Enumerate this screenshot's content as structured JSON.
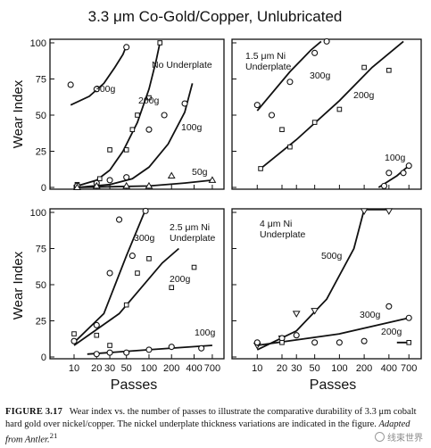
{
  "figure_title": "3.3 μm Co-Gold/Copper, Unlubricated",
  "y_axis_label": "Wear Index",
  "x_axis_label": "Passes",
  "x_tick_labels": [
    "10",
    "20",
    "30",
    "50",
    "100",
    "200",
    "400",
    "700"
  ],
  "caption": {
    "label": "FIGURE 3.17",
    "text": "Wear index vs. the number of passes to illustrate the comparative durability of 3.3 μm cobalt hard gold over nickel/copper. The nickel underplate thickness variations are indicated in the figure.",
    "adapted": "Adapted from Antler.",
    "ref": "21"
  },
  "watermark": "线束世界",
  "chart_data": [
    {
      "type": "scatter",
      "title": "No Underplate",
      "xlabel": "Passes",
      "ylabel": "Wear Index",
      "xscale": "log",
      "xlim": [
        7,
        850
      ],
      "ylim": [
        0,
        100
      ],
      "x_ticks": [
        10,
        20,
        30,
        50,
        100,
        200,
        400,
        700
      ],
      "y_ticks": [
        0,
        25,
        50,
        75,
        100
      ],
      "series": [
        {
          "name": "300g",
          "marker": "circle",
          "points": [
            [
              9,
              71
            ],
            [
              20,
              68
            ],
            [
              50,
              97
            ]
          ],
          "curve": [
            [
              9,
              57
            ],
            [
              16,
              63
            ],
            [
              25,
              72
            ],
            [
              35,
              83
            ],
            [
              45,
              92
            ],
            [
              50,
              98
            ]
          ]
        },
        {
          "name": "200g",
          "marker": "square",
          "points": [
            [
              11,
              2
            ],
            [
              22,
              6
            ],
            [
              30,
              26
            ],
            [
              50,
              26
            ],
            [
              60,
              40
            ],
            [
              70,
              50
            ],
            [
              100,
              62
            ],
            [
              140,
              100
            ]
          ],
          "curve": [
            [
              11,
              1
            ],
            [
              20,
              5
            ],
            [
              30,
              12
            ],
            [
              45,
              25
            ],
            [
              70,
              45
            ],
            [
              100,
              68
            ],
            [
              125,
              88
            ],
            [
              140,
              100
            ]
          ]
        },
        {
          "name": "100g",
          "marker": "circle",
          "points": [
            [
              11,
              1
            ],
            [
              20,
              3
            ],
            [
              30,
              5
            ],
            [
              50,
              7
            ],
            [
              100,
              40
            ],
            [
              160,
              50
            ],
            [
              300,
              58
            ]
          ],
          "curve": [
            [
              11,
              0
            ],
            [
              30,
              2
            ],
            [
              60,
              6
            ],
            [
              100,
              14
            ],
            [
              180,
              30
            ],
            [
              300,
              52
            ],
            [
              380,
              72
            ]
          ]
        },
        {
          "name": "50g",
          "marker": "triangle",
          "points": [
            [
              11,
              0
            ],
            [
              20,
              1
            ],
            [
              50,
              1
            ],
            [
              100,
              1
            ],
            [
              200,
              8
            ],
            [
              700,
              5
            ]
          ],
          "curve": [
            [
              11,
              0
            ],
            [
              100,
              1
            ],
            [
              300,
              3
            ],
            [
              700,
              5
            ]
          ]
        }
      ]
    },
    {
      "type": "scatter",
      "title": "1.5 μm Ni Underplate",
      "xlabel": "Passes",
      "ylabel": "Wear Index",
      "xscale": "log",
      "xlim": [
        7,
        850
      ],
      "ylim": [
        0,
        100
      ],
      "x_ticks": [
        10,
        20,
        30,
        50,
        100,
        200,
        400,
        700
      ],
      "y_ticks": [
        0,
        25,
        50,
        75,
        100
      ],
      "series": [
        {
          "name": "300g",
          "marker": "circle",
          "points": [
            [
              10,
              57
            ],
            [
              15,
              50
            ],
            [
              25,
              73
            ],
            [
              50,
              93
            ],
            [
              70,
              101
            ]
          ],
          "curve": [
            [
              10,
              53
            ],
            [
              25,
              80
            ],
            [
              45,
              95
            ],
            [
              60,
              101
            ]
          ]
        },
        {
          "name": "200g",
          "marker": "square",
          "points": [
            [
              11,
              13
            ],
            [
              20,
              40
            ],
            [
              25,
              28
            ],
            [
              50,
              45
            ],
            [
              100,
              54
            ],
            [
              200,
              83
            ],
            [
              400,
              81
            ]
          ],
          "curve": [
            [
              11,
              13
            ],
            [
              30,
              33
            ],
            [
              100,
              60
            ],
            [
              250,
              83
            ],
            [
              600,
              101
            ]
          ]
        },
        {
          "name": "100g",
          "marker": "circle",
          "points": [
            [
              350,
              1
            ],
            [
              400,
              10
            ],
            [
              600,
              10
            ],
            [
              700,
              15
            ]
          ],
          "curve": [
            [
              300,
              0
            ],
            [
              500,
              8
            ],
            [
              700,
              15
            ]
          ]
        }
      ]
    },
    {
      "type": "scatter",
      "title": "2.5 μm Ni Underplate",
      "xlabel": "Passes",
      "ylabel": "Wear Index",
      "xscale": "log",
      "xlim": [
        7,
        850
      ],
      "ylim": [
        0,
        100
      ],
      "x_ticks": [
        10,
        20,
        30,
        50,
        100,
        200,
        400,
        700
      ],
      "y_ticks": [
        0,
        25,
        50,
        75,
        100
      ],
      "series": [
        {
          "name": "300g",
          "marker": "circle",
          "points": [
            [
              10,
              11
            ],
            [
              20,
              22
            ],
            [
              30,
              58
            ],
            [
              40,
              95
            ],
            [
              60,
              70
            ],
            [
              90,
              102
            ]
          ],
          "curve": [
            [
              10,
              10
            ],
            [
              25,
              30
            ],
            [
              50,
              70
            ],
            [
              90,
              102
            ]
          ]
        },
        {
          "name": "200g",
          "marker": "square",
          "points": [
            [
              10,
              16
            ],
            [
              20,
              15
            ],
            [
              30,
              8
            ],
            [
              50,
              36
            ],
            [
              70,
              58
            ],
            [
              100,
              68
            ],
            [
              200,
              48
            ],
            [
              400,
              62
            ]
          ],
          "curve": [
            [
              10,
              8
            ],
            [
              40,
              30
            ],
            [
              150,
              65
            ],
            [
              250,
              75
            ]
          ]
        },
        {
          "name": "100g",
          "marker": "circle",
          "points": [
            [
              20,
              2
            ],
            [
              30,
              3
            ],
            [
              50,
              3
            ],
            [
              100,
              5
            ],
            [
              200,
              7
            ],
            [
              500,
              6
            ]
          ],
          "curve": [
            [
              15,
              2
            ],
            [
              100,
              5
            ],
            [
              700,
              8
            ]
          ]
        }
      ]
    },
    {
      "type": "scatter",
      "title": "4 μm Ni Underplate",
      "xlabel": "Passes",
      "ylabel": "Wear Index",
      "xscale": "log",
      "xlim": [
        7,
        850
      ],
      "ylim": [
        0,
        100
      ],
      "x_ticks": [
        10,
        20,
        30,
        50,
        100,
        200,
        400,
        700
      ],
      "y_ticks": [
        0,
        25,
        50,
        75,
        100
      ],
      "series": [
        {
          "name": "500g",
          "marker": "triangle",
          "points": [
            [
              10,
              8
            ],
            [
              20,
              13
            ],
            [
              30,
              30
            ],
            [
              50,
              32
            ],
            [
              200,
              102
            ],
            [
              400,
              102
            ]
          ],
          "curve": [
            [
              10,
              5
            ],
            [
              30,
              18
            ],
            [
              70,
              40
            ],
            [
              150,
              75
            ],
            [
              200,
              102
            ],
            [
              400,
              102
            ]
          ]
        },
        {
          "name": "300g",
          "marker": "circle",
          "points": [
            [
              10,
              10
            ],
            [
              20,
              13
            ],
            [
              30,
              15
            ],
            [
              50,
              10
            ],
            [
              100,
              10
            ],
            [
              200,
              11
            ],
            [
              400,
              35
            ],
            [
              700,
              27
            ]
          ],
          "curve": [
            [
              10,
              8
            ],
            [
              100,
              16
            ],
            [
              700,
              27
            ]
          ]
        },
        {
          "name": "200g",
          "marker": "square",
          "points": [
            [
              20,
              10
            ],
            [
              700,
              10
            ]
          ],
          "curve": [
            [
              500,
              10
            ],
            [
              750,
              10
            ]
          ]
        }
      ]
    }
  ]
}
